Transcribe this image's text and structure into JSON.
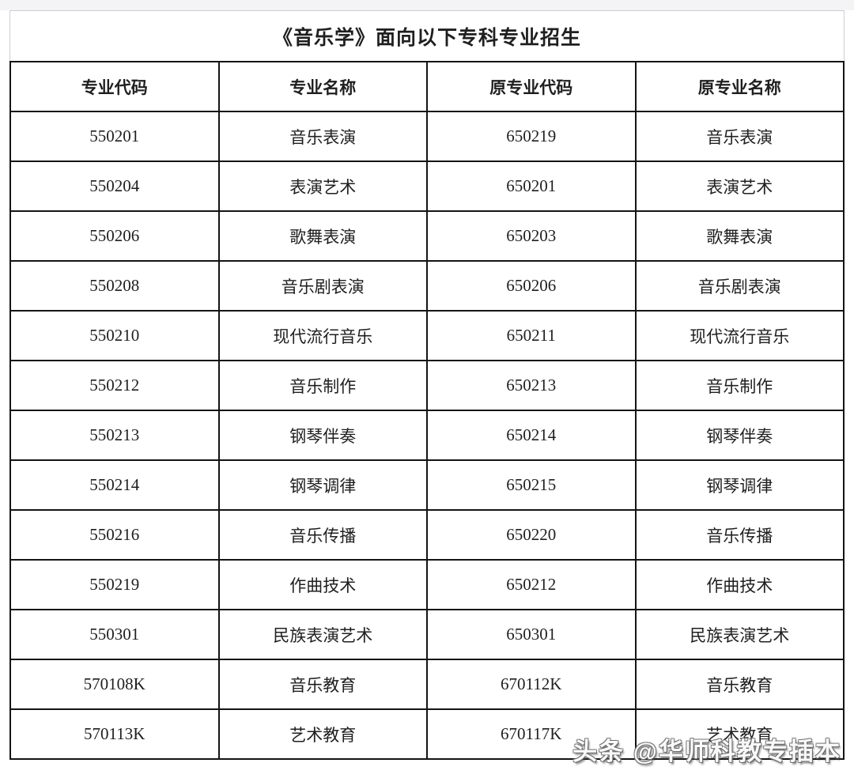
{
  "page": {
    "title_row": "《音乐学》面向以下专科专业招生"
  },
  "table": {
    "columns": [
      "专业代码",
      "专业名称",
      "原专业代码",
      "原专业名称"
    ],
    "rows": [
      [
        "550201",
        "音乐表演",
        "650219",
        "音乐表演"
      ],
      [
        "550204",
        "表演艺术",
        "650201",
        "表演艺术"
      ],
      [
        "550206",
        "歌舞表演",
        "650203",
        "歌舞表演"
      ],
      [
        "550208",
        "音乐剧表演",
        "650206",
        "音乐剧表演"
      ],
      [
        "550210",
        "现代流行音乐",
        "650211",
        "现代流行音乐"
      ],
      [
        "550212",
        "音乐制作",
        "650213",
        "音乐制作"
      ],
      [
        "550213",
        "钢琴伴奏",
        "650214",
        "钢琴伴奏"
      ],
      [
        "550214",
        "钢琴调律",
        "650215",
        "钢琴调律"
      ],
      [
        "550216",
        "音乐传播",
        "650220",
        "音乐传播"
      ],
      [
        "550219",
        "作曲技术",
        "650212",
        "作曲技术"
      ],
      [
        "550301",
        "民族表演艺术",
        "650301",
        "民族表演艺术"
      ],
      [
        "570108K",
        "音乐教育",
        "670112K",
        "音乐教育"
      ],
      [
        "570113K",
        "艺术教育",
        "670117K",
        "艺术教育"
      ]
    ]
  },
  "watermark": {
    "text": "头条 @华师科教专插本"
  },
  "colors": {
    "table_border": "#141414",
    "title_border": "#cdced4",
    "text": "#1f1f1f",
    "watermark": "#ffffff",
    "top_strip": "#f4f4f6",
    "background": "#ffffff"
  }
}
